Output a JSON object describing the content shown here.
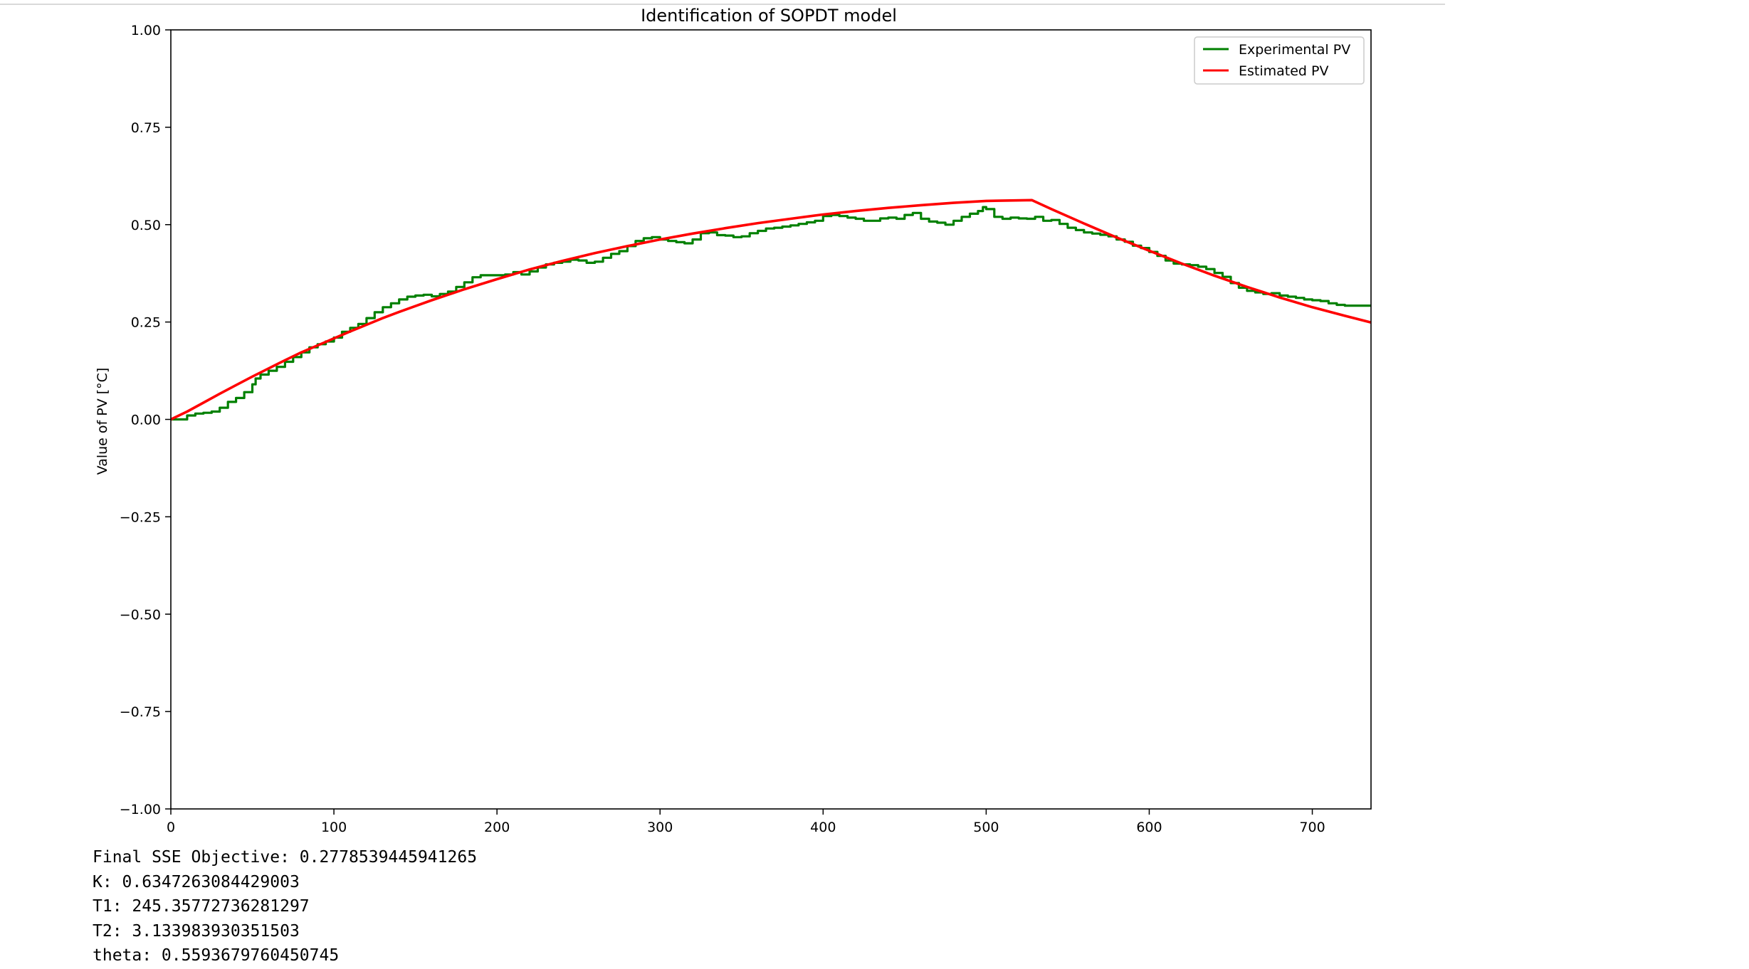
{
  "chart_data": {
    "type": "line",
    "title": "Identification of SOPDT model",
    "xlabel": "",
    "ylabel": "Value of PV [°C]",
    "xlim": [
      0,
      736
    ],
    "ylim": [
      -1.0,
      1.0
    ],
    "x_ticks": [
      0,
      100,
      200,
      300,
      400,
      500,
      600,
      700
    ],
    "x_tick_labels": [
      "0",
      "100",
      "200",
      "300",
      "400",
      "500",
      "600",
      "700"
    ],
    "y_ticks": [
      1.0,
      0.75,
      0.5,
      0.25,
      0.0,
      -0.25,
      -0.5,
      -0.75,
      -1.0
    ],
    "y_tick_labels": [
      "1.00",
      "0.75",
      "0.50",
      "0.25",
      "0.00",
      "−0.25",
      "−0.50",
      "−0.75",
      "−1.00"
    ],
    "grid": false,
    "legend_position": "top-right",
    "series": [
      {
        "name": "Experimental PV",
        "color": "#008000",
        "step": true,
        "points": [
          [
            0,
            0.0
          ],
          [
            5,
            0.0
          ],
          [
            10,
            0.01
          ],
          [
            15,
            0.015
          ],
          [
            20,
            0.017
          ],
          [
            25,
            0.02
          ],
          [
            30,
            0.03
          ],
          [
            35,
            0.045
          ],
          [
            40,
            0.055
          ],
          [
            45,
            0.07
          ],
          [
            50,
            0.09
          ],
          [
            52,
            0.105
          ],
          [
            55,
            0.115
          ],
          [
            60,
            0.125
          ],
          [
            65,
            0.135
          ],
          [
            70,
            0.148
          ],
          [
            75,
            0.16
          ],
          [
            80,
            0.172
          ],
          [
            85,
            0.185
          ],
          [
            90,
            0.193
          ],
          [
            95,
            0.2
          ],
          [
            100,
            0.21
          ],
          [
            105,
            0.225
          ],
          [
            110,
            0.235
          ],
          [
            115,
            0.245
          ],
          [
            120,
            0.26
          ],
          [
            125,
            0.275
          ],
          [
            130,
            0.288
          ],
          [
            135,
            0.298
          ],
          [
            140,
            0.308
          ],
          [
            145,
            0.315
          ],
          [
            150,
            0.318
          ],
          [
            155,
            0.32
          ],
          [
            160,
            0.316
          ],
          [
            165,
            0.322
          ],
          [
            170,
            0.328
          ],
          [
            175,
            0.34
          ],
          [
            180,
            0.352
          ],
          [
            185,
            0.365
          ],
          [
            190,
            0.37
          ],
          [
            200,
            0.37
          ],
          [
            205,
            0.372
          ],
          [
            210,
            0.378
          ],
          [
            215,
            0.372
          ],
          [
            220,
            0.38
          ],
          [
            225,
            0.39
          ],
          [
            230,
            0.398
          ],
          [
            235,
            0.402
          ],
          [
            240,
            0.405
          ],
          [
            245,
            0.41
          ],
          [
            250,
            0.408
          ],
          [
            255,
            0.402
          ],
          [
            260,
            0.405
          ],
          [
            265,
            0.415
          ],
          [
            270,
            0.425
          ],
          [
            275,
            0.432
          ],
          [
            280,
            0.445
          ],
          [
            285,
            0.458
          ],
          [
            290,
            0.465
          ],
          [
            295,
            0.468
          ],
          [
            300,
            0.462
          ],
          [
            305,
            0.458
          ],
          [
            310,
            0.455
          ],
          [
            315,
            0.452
          ],
          [
            320,
            0.462
          ],
          [
            325,
            0.478
          ],
          [
            330,
            0.48
          ],
          [
            335,
            0.473
          ],
          [
            340,
            0.472
          ],
          [
            345,
            0.468
          ],
          [
            350,
            0.47
          ],
          [
            355,
            0.478
          ],
          [
            360,
            0.484
          ],
          [
            365,
            0.49
          ],
          [
            370,
            0.492
          ],
          [
            375,
            0.495
          ],
          [
            380,
            0.498
          ],
          [
            385,
            0.502
          ],
          [
            390,
            0.506
          ],
          [
            395,
            0.51
          ],
          [
            400,
            0.522
          ],
          [
            405,
            0.525
          ],
          [
            410,
            0.522
          ],
          [
            415,
            0.518
          ],
          [
            420,
            0.515
          ],
          [
            425,
            0.51
          ],
          [
            430,
            0.51
          ],
          [
            435,
            0.516
          ],
          [
            440,
            0.518
          ],
          [
            445,
            0.515
          ],
          [
            450,
            0.525
          ],
          [
            455,
            0.53
          ],
          [
            460,
            0.515
          ],
          [
            465,
            0.508
          ],
          [
            470,
            0.505
          ],
          [
            475,
            0.5
          ],
          [
            480,
            0.51
          ],
          [
            485,
            0.52
          ],
          [
            490,
            0.528
          ],
          [
            495,
            0.535
          ],
          [
            498,
            0.545
          ],
          [
            500,
            0.54
          ],
          [
            505,
            0.52
          ],
          [
            510,
            0.515
          ],
          [
            515,
            0.518
          ],
          [
            520,
            0.516
          ],
          [
            525,
            0.515
          ],
          [
            530,
            0.52
          ],
          [
            535,
            0.51
          ],
          [
            540,
            0.512
          ],
          [
            545,
            0.502
          ],
          [
            550,
            0.492
          ],
          [
            555,
            0.486
          ],
          [
            560,
            0.48
          ],
          [
            565,
            0.477
          ],
          [
            570,
            0.474
          ],
          [
            575,
            0.47
          ],
          [
            580,
            0.462
          ],
          [
            585,
            0.456
          ],
          [
            590,
            0.446
          ],
          [
            595,
            0.44
          ],
          [
            600,
            0.43
          ],
          [
            605,
            0.42
          ],
          [
            610,
            0.408
          ],
          [
            615,
            0.4
          ],
          [
            620,
            0.398
          ],
          [
            625,
            0.396
          ],
          [
            630,
            0.392
          ],
          [
            635,
            0.386
          ],
          [
            640,
            0.376
          ],
          [
            645,
            0.366
          ],
          [
            650,
            0.35
          ],
          [
            655,
            0.338
          ],
          [
            660,
            0.33
          ],
          [
            665,
            0.326
          ],
          [
            670,
            0.322
          ],
          [
            675,
            0.324
          ],
          [
            680,
            0.318
          ],
          [
            685,
            0.315
          ],
          [
            690,
            0.312
          ],
          [
            695,
            0.308
          ],
          [
            700,
            0.306
          ],
          [
            705,
            0.304
          ],
          [
            710,
            0.298
          ],
          [
            715,
            0.294
          ],
          [
            720,
            0.292
          ],
          [
            736,
            0.292
          ]
        ]
      },
      {
        "name": "Estimated PV",
        "color": "#ff0000",
        "step": false,
        "points": [
          [
            0,
            0.0
          ],
          [
            10,
            0.02
          ],
          [
            20,
            0.043
          ],
          [
            30,
            0.066
          ],
          [
            40,
            0.088
          ],
          [
            50,
            0.11
          ],
          [
            60,
            0.131
          ],
          [
            70,
            0.152
          ],
          [
            80,
            0.172
          ],
          [
            90,
            0.19
          ],
          [
            100,
            0.208
          ],
          [
            110,
            0.226
          ],
          [
            120,
            0.243
          ],
          [
            130,
            0.26
          ],
          [
            140,
            0.276
          ],
          [
            150,
            0.291
          ],
          [
            160,
            0.306
          ],
          [
            170,
            0.32
          ],
          [
            180,
            0.334
          ],
          [
            190,
            0.347
          ],
          [
            200,
            0.36
          ],
          [
            220,
            0.385
          ],
          [
            240,
            0.407
          ],
          [
            260,
            0.427
          ],
          [
            280,
            0.445
          ],
          [
            300,
            0.462
          ],
          [
            320,
            0.477
          ],
          [
            340,
            0.491
          ],
          [
            360,
            0.504
          ],
          [
            380,
            0.515
          ],
          [
            400,
            0.526
          ],
          [
            420,
            0.535
          ],
          [
            440,
            0.543
          ],
          [
            460,
            0.55
          ],
          [
            480,
            0.556
          ],
          [
            500,
            0.561
          ],
          [
            528,
            0.563
          ],
          [
            540,
            0.54
          ],
          [
            560,
            0.503
          ],
          [
            580,
            0.467
          ],
          [
            600,
            0.433
          ],
          [
            620,
            0.4
          ],
          [
            640,
            0.369
          ],
          [
            660,
            0.34
          ],
          [
            680,
            0.313
          ],
          [
            700,
            0.288
          ],
          [
            720,
            0.266
          ],
          [
            736,
            0.249
          ]
        ]
      }
    ]
  },
  "output": {
    "lines": [
      "Final SSE Objective: 0.2778539445941265",
      "K: 0.6347263084429003",
      "T1: 245.35772736281297",
      "T2: 3.133983930351503",
      "theta: 0.5593679760450745"
    ]
  }
}
